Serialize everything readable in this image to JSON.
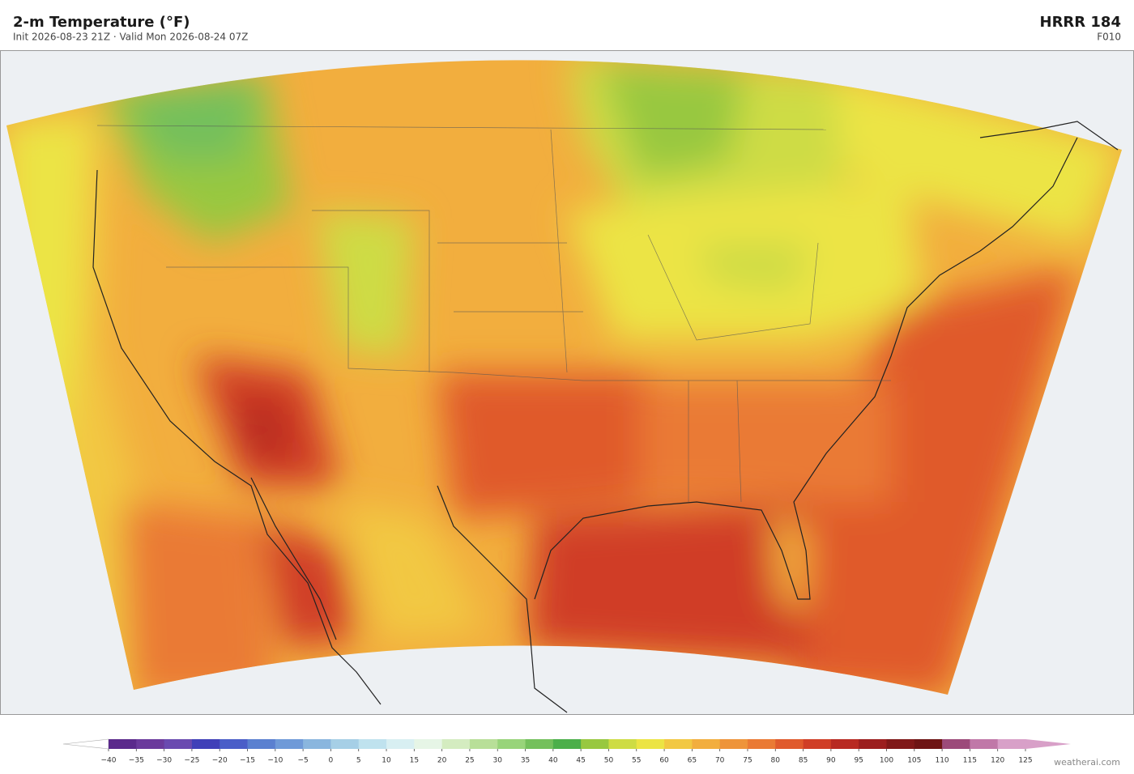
{
  "header": {
    "title": "2-m Temperature  (°F)",
    "subtitle": "Init 2026-08-23 21Z  ·  Valid Mon 2026-08-24 07Z",
    "model": "HRRR  184",
    "forecast_hour": "F010"
  },
  "colorbar": {
    "ticks": [
      {
        "value": -40,
        "label": "−40"
      },
      {
        "value": -35,
        "label": "−35"
      },
      {
        "value": -30,
        "label": "−30"
      },
      {
        "value": -25,
        "label": "−25"
      },
      {
        "value": -20,
        "label": "−20"
      },
      {
        "value": -15,
        "label": "−15"
      },
      {
        "value": -10,
        "label": "−10"
      },
      {
        "value": -5,
        "label": "−5"
      },
      0,
      5,
      10,
      15,
      20,
      25,
      30,
      35,
      40,
      45,
      50,
      55,
      60,
      65,
      70,
      75,
      80,
      85,
      90,
      95,
      100,
      105,
      110,
      115,
      120,
      125
    ],
    "colors": [
      "#5b2a8c",
      "#6b3a9c",
      "#6a4ab0",
      "#4040b8",
      "#4a5ec8",
      "#5a80d0",
      "#6f9ad8",
      "#8ab6de",
      "#a6cfe6",
      "#bfe2ee",
      "#d8eff2",
      "#e6f5e6",
      "#d4ecc0",
      "#b8df98",
      "#98d47a",
      "#74c05c",
      "#4caf4a",
      "#98c840",
      "#cedc44",
      "#ece444",
      "#f2c842",
      "#f2ae3e",
      "#ee943a",
      "#ea7a34",
      "#e05a2c",
      "#d03e26",
      "#b82a22",
      "#9c1e1e",
      "#801818",
      "#6e1414",
      "#9c4a7a",
      "#c078a8",
      "#d8a0c8"
    ],
    "under_color": "#ffffff",
    "over_color": "#d8a0c8"
  },
  "credit": "weatherai.com"
}
